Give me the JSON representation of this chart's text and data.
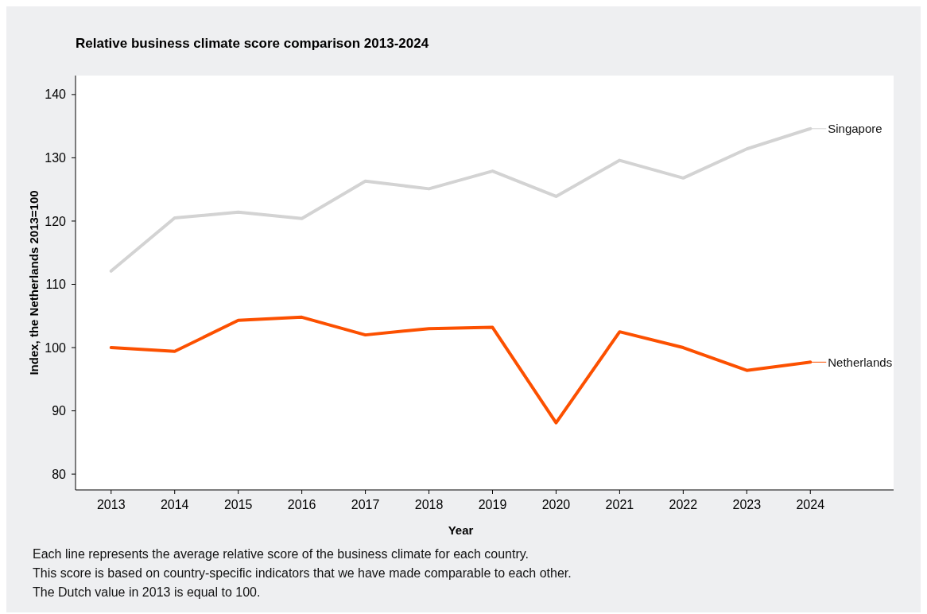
{
  "chart_data": {
    "type": "line",
    "title": "Relative business climate score comparison 2013-2024",
    "xlabel": "Year",
    "ylabel": "Index, the Netherlands 2013=100",
    "x": [
      2013,
      2014,
      2015,
      2016,
      2017,
      2018,
      2019,
      2020,
      2021,
      2022,
      2023,
      2024
    ],
    "series": [
      {
        "name": "Singapore",
        "color": "#d3d3d3",
        "values": [
          112.1,
          120.5,
          121.4,
          120.4,
          126.3,
          125.1,
          127.9,
          123.9,
          129.6,
          126.8,
          131.4,
          134.6
        ]
      },
      {
        "name": "Netherlands",
        "color": "#fc5000",
        "values": [
          100,
          99.4,
          104.3,
          104.8,
          102,
          103,
          103.2,
          88.1,
          102.5,
          100,
          96.4,
          97.7
        ]
      }
    ],
    "xlim": [
      2012.44,
      2025.31
    ],
    "xticks": [
      2013,
      2014,
      2015,
      2016,
      2017,
      2018,
      2019,
      2020,
      2021,
      2022,
      2023,
      2024
    ],
    "ylim": [
      77.5,
      143
    ],
    "yticks": [
      80,
      90,
      100,
      110,
      120,
      130,
      140
    ],
    "grid": false,
    "legend": "right",
    "marker": "none",
    "line_style": "solid",
    "annotations": [
      "Each line represents the average relative score of the business climate for each country.",
      "This score is based on country-specific indicators that we have made comparable to each other.",
      "The Dutch value in 2013 is equal to 100."
    ]
  }
}
